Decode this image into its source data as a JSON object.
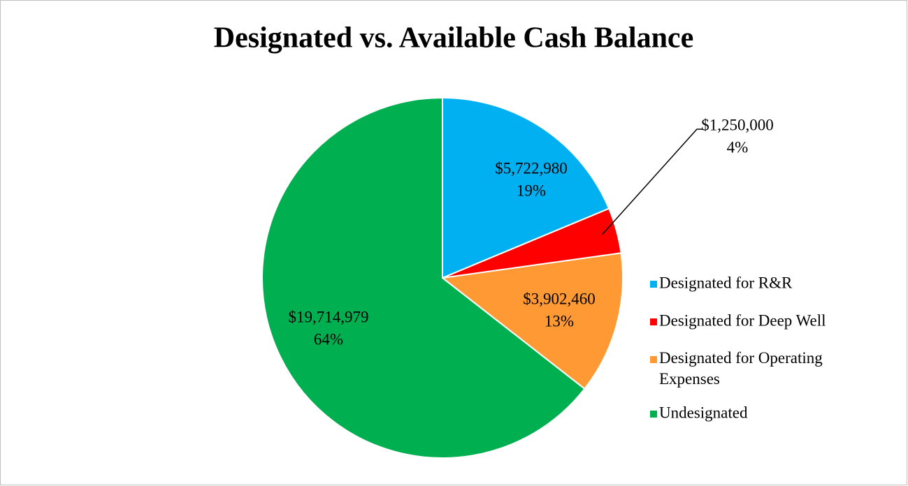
{
  "chart_data": {
    "type": "pie",
    "title": "Designated vs. Available Cash Balance",
    "categories": [
      "Designated for R&R",
      "Designated for Deep Well",
      "Designated for Operating Expenses",
      "Undesignated"
    ],
    "values": [
      5722980,
      1250000,
      3902460,
      19714979
    ],
    "value_labels": [
      "$5,722,980",
      "$1,250,000",
      "$3,902,460",
      "$19,714,979"
    ],
    "percent_labels": [
      "19%",
      "4%",
      "13%",
      "64%"
    ],
    "colors": [
      "#00b0f0",
      "#ff0000",
      "#ff9933",
      "#00b050"
    ],
    "legend": "right"
  }
}
